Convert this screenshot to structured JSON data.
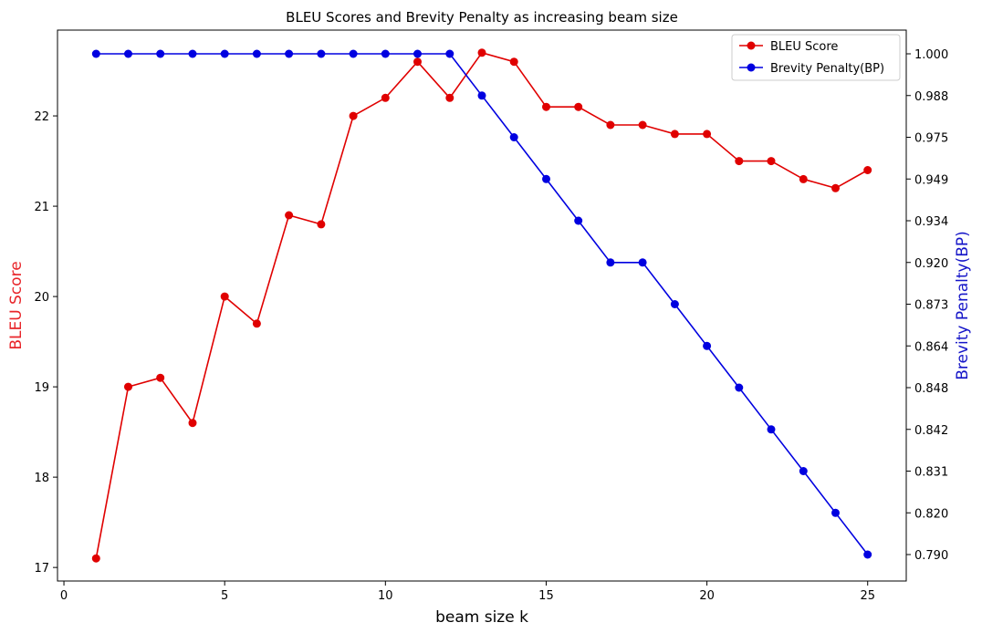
{
  "chart_data": {
    "type": "line",
    "title": "BLEU Scores and Brevity Penalty as increasing beam size",
    "xlabel": "beam size k",
    "ylabel_left": "BLEU Score",
    "ylabel_right": "Brevity Penalty(BP)",
    "ylabel_left_color": "#e8252a",
    "ylabel_right_color": "#1515c8",
    "x": [
      1,
      2,
      3,
      4,
      5,
      6,
      7,
      8,
      9,
      10,
      11,
      12,
      13,
      14,
      15,
      16,
      17,
      18,
      19,
      20,
      21,
      22,
      23,
      24,
      25
    ],
    "xlim": [
      -0.2,
      26.2
    ],
    "x_ticks": [
      0,
      5,
      10,
      15,
      20,
      25
    ],
    "x_tick_labels": [
      "0",
      "5",
      "10",
      "15",
      "20",
      "25"
    ],
    "series": [
      {
        "name": "BLEU Score",
        "axis": "left",
        "color": "#e00000",
        "values": [
          17.1,
          19.0,
          19.1,
          18.6,
          20.0,
          19.7,
          20.9,
          20.8,
          22.0,
          22.2,
          22.6,
          22.2,
          22.7,
          22.6,
          22.1,
          22.1,
          21.9,
          21.9,
          21.8,
          21.8,
          21.5,
          21.5,
          21.3,
          21.2,
          21.4
        ]
      },
      {
        "name": "Brevity Penalty(BP)",
        "axis": "right",
        "color": "#0000e0",
        "values": [
          1.0,
          1.0,
          1.0,
          1.0,
          1.0,
          1.0,
          1.0,
          1.0,
          1.0,
          1.0,
          1.0,
          1.0,
          0.988,
          0.975,
          0.949,
          0.934,
          0.92,
          0.92,
          0.873,
          0.864,
          0.848,
          0.842,
          0.831,
          0.82,
          0.79
        ]
      }
    ],
    "ylim_left": [
      16.85,
      22.95
    ],
    "y_ticks_left": [
      17,
      18,
      19,
      20,
      21,
      22
    ],
    "y_tick_labels_left": [
      "17",
      "18",
      "19",
      "20",
      "21",
      "22"
    ],
    "y_tick_labels_right": [
      "0.790",
      "0.820",
      "0.831",
      "0.842",
      "0.848",
      "0.864",
      "0.873",
      "0.920",
      "0.934",
      "0.949",
      "0.975",
      "0.988",
      "1.000"
    ],
    "grid": false,
    "legend_position": "top-right"
  }
}
